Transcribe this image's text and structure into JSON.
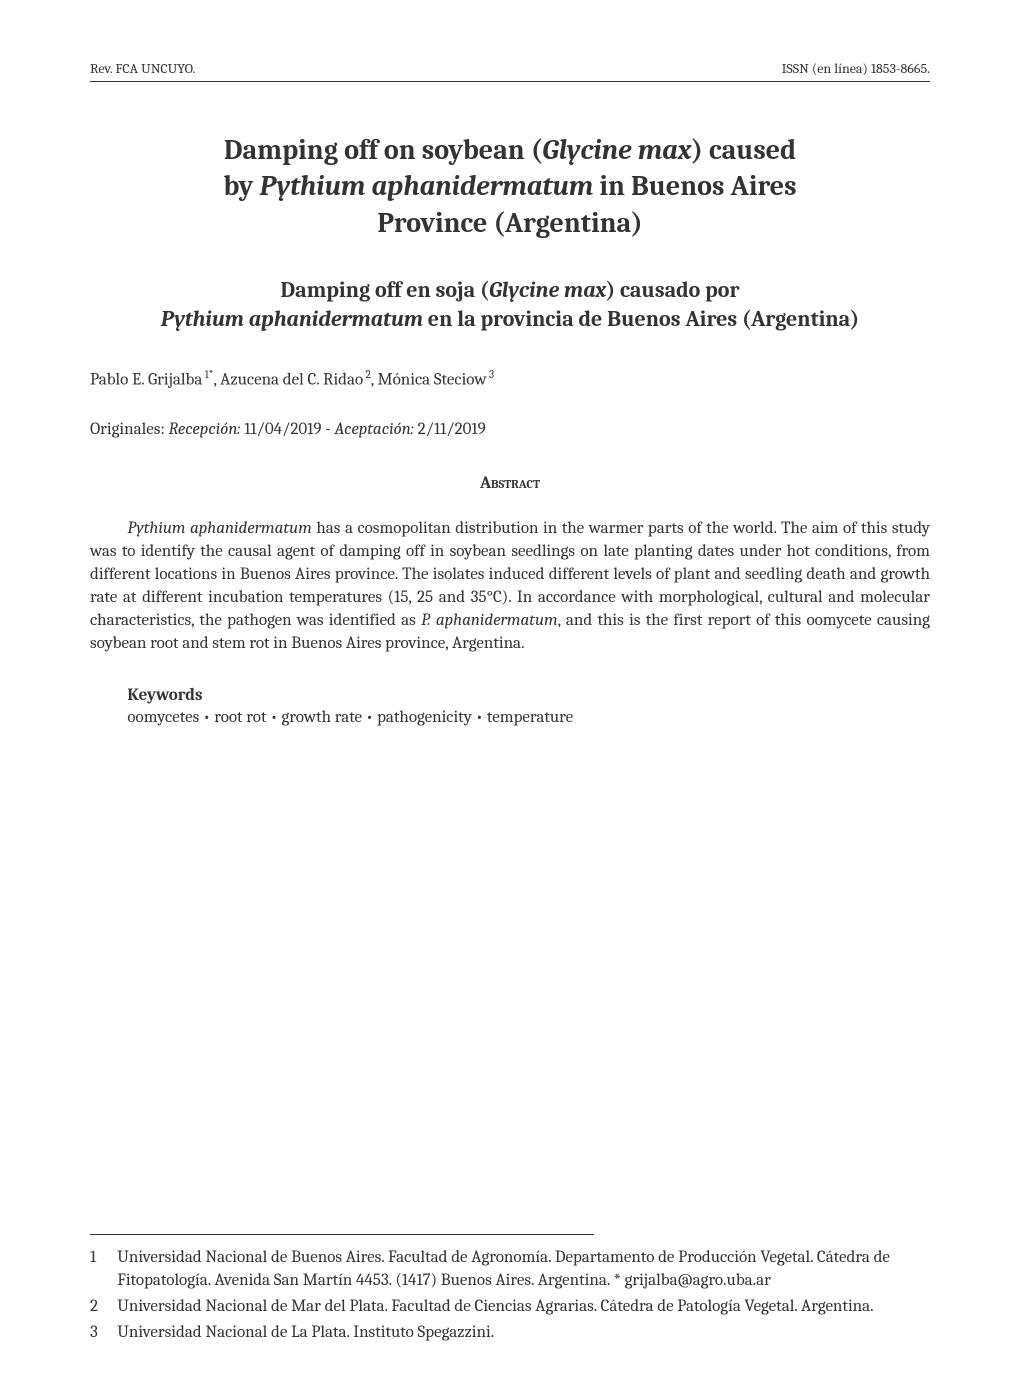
{
  "header": {
    "left": "Rev. FCA UNCUYO.",
    "right": "ISSN (en línea) 1853-8665."
  },
  "title": {
    "line1_pre": "Damping off on soybean (",
    "line1_italic": "Glycine max",
    "line1_post": ") caused",
    "line2_pre": "by ",
    "line2_italic": "Pythium aphanidermatum",
    "line2_post": " in Buenos Aires",
    "line3": "Province (Argentina)"
  },
  "subtitle": {
    "line1_pre": "Damping off en soja (",
    "line1_italic": "Glycine max",
    "line1_post": ") causado por",
    "line2_italic": "Pythium aphanidermatum",
    "line2_post": " en la provincia de Buenos Aires (Argentina)"
  },
  "authors": {
    "a1_name": "Pablo E. Grijalba",
    "a1_sup": " 1*",
    "a2_name": "Azucena del C. Ridao",
    "a2_sup": " 2",
    "a3_name": "Mónica Steciow",
    "a3_sup": " 3"
  },
  "dates": {
    "label": "Originales: ",
    "recv_label": "Recepción:",
    "recv_date": " 11/04/2019 - ",
    "acc_label": "Aceptación:",
    "acc_date": " 2/11/2019"
  },
  "abstract": {
    "heading": "Abstract",
    "p1_italic1": "Pythium aphanidermatum",
    "p1_seg1": " has a cosmopolitan distribution in the warmer parts of the world. The aim of this study was to identify the causal agent of damping off in soybean seedlings on late planting dates under hot conditions, from different locations in Buenos Aires province. The isolates induced different levels of plant and seedling death and growth rate at different incubation temperatures (15, 25 and 35°C). In accordance with morphological, cultural and molecular characteristics, the pathogen was identified as ",
    "p1_italic2": "P. aphanidermatum",
    "p1_seg2": ", and this is the first report of this oomycete causing soybean root and stem rot in Buenos Aires province, Argentina."
  },
  "keywords": {
    "heading": "Keywords",
    "body": "oomycetes • root rot • growth rate • pathogenicity • temperature"
  },
  "affiliations": [
    {
      "num": "1",
      "text": "Universidad Nacional de Buenos Aires. Facultad de Agronomía. Departamento de Producción Vegetal. Cátedra de Fitopatología. Avenida San Martín 4453. (1417) Buenos Aires. Argentina. * grijalba@agro.uba.ar"
    },
    {
      "num": "2",
      "text": "Universidad Nacional de Mar del Plata. Facultad de Ciencias Agrarias. Cátedra de Patología Vegetal. Argentina."
    },
    {
      "num": "3",
      "text": "Universidad Nacional de La Plata. Instituto Spegazzini."
    }
  ]
}
